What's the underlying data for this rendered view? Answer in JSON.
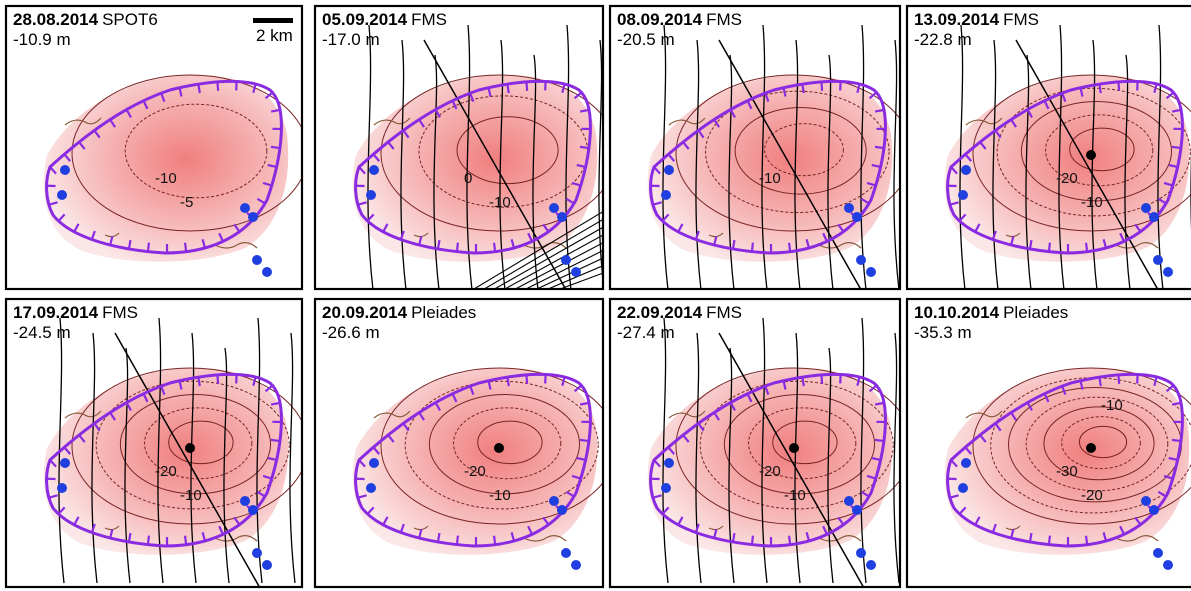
{
  "scalebar": {
    "label": "2 km"
  },
  "panels": [
    {
      "date": "28.08.2014",
      "source": "SPOT6",
      "depth": "-10.9 m",
      "contour_labels": [
        "-10",
        "-5"
      ],
      "has_tracks": false,
      "has_center": false,
      "has_hatch": false
    },
    {
      "date": "05.09.2014",
      "source": "FMS",
      "depth": "-17.0 m",
      "contour_labels": [
        "0",
        "-10"
      ],
      "has_tracks": true,
      "has_center": false,
      "has_hatch": true
    },
    {
      "date": "08.09.2014",
      "source": "FMS",
      "depth": "-20.5 m",
      "contour_labels": [
        "-10"
      ],
      "has_tracks": true,
      "has_center": false,
      "has_hatch": false
    },
    {
      "date": "13.09.2014",
      "source": "FMS",
      "depth": "-22.8 m",
      "contour_labels": [
        "-20",
        "-10"
      ],
      "has_tracks": true,
      "has_center": true,
      "has_hatch": false
    },
    {
      "date": "17.09.2014",
      "source": "FMS",
      "depth": "-24.5 m",
      "contour_labels": [
        "-20",
        "-10"
      ],
      "has_tracks": true,
      "has_center": true,
      "has_hatch": false
    },
    {
      "date": "20.09.2014",
      "source": "Pleiades",
      "depth": "-26.6 m",
      "contour_labels": [
        "-20",
        "-10"
      ],
      "has_tracks": false,
      "has_center": true,
      "has_hatch": false
    },
    {
      "date": "22.09.2014",
      "source": "FMS",
      "depth": "-27.4 m",
      "contour_labels": [
        "-20",
        "-10"
      ],
      "has_tracks": true,
      "has_center": true,
      "has_hatch": false
    },
    {
      "date": "10.10.2014",
      "source": "Pleiades",
      "depth": "-35.3 m",
      "contour_labels": [
        "-30",
        "-20",
        "-10"
      ],
      "has_tracks": false,
      "has_center": true,
      "has_hatch": false
    }
  ],
  "colors": {
    "caldera_rim": "#8a2be2",
    "ice_fill_outer": "#fbe7e7",
    "ice_fill_inner": "#f07f7f",
    "contour_line": "#7a2424",
    "outcrop": "#8b5a3c",
    "station": "#1f3fe0",
    "track": "#000000",
    "frame": "#000000"
  }
}
